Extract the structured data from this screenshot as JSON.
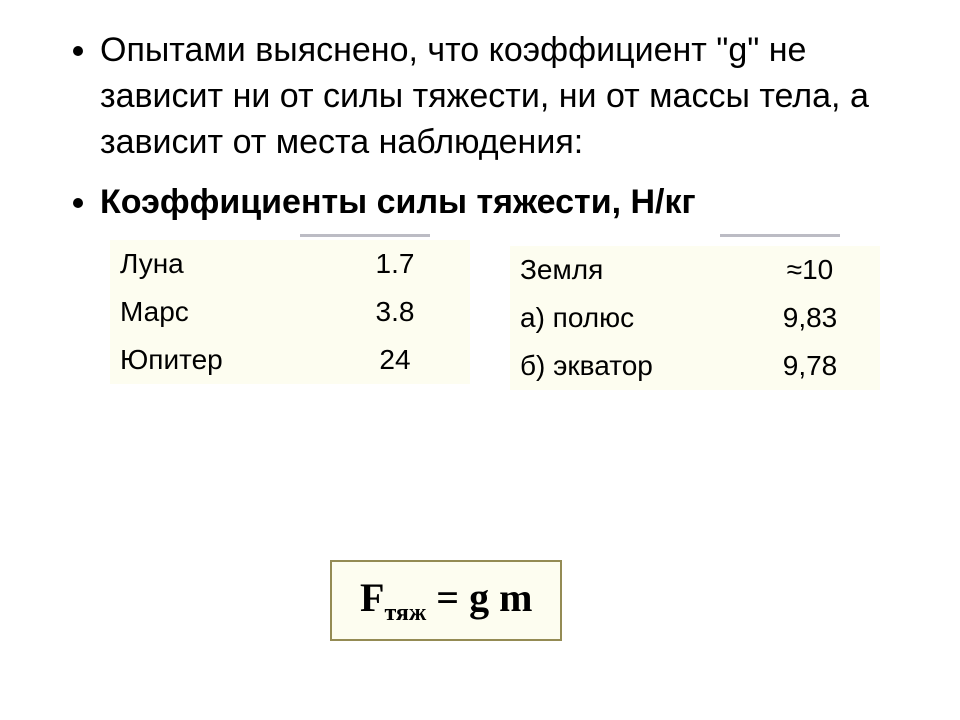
{
  "bullets": {
    "item1": "Опытами выяснено, что коэффициент \"g\" не зависит ни от силы тяжести, ни от массы тела, а зависит от места наблюдения:",
    "item2": "Коэффициенты силы тяжести, Н/кг"
  },
  "tableLeft": {
    "background_color": "#fdfdf0",
    "font_size_pt": 21,
    "rows": [
      {
        "label": "Луна",
        "value": "1.7"
      },
      {
        "label": "Марс",
        "value": "3.8"
      },
      {
        "label": "Юпитер",
        "value": "24"
      }
    ]
  },
  "tableRight": {
    "background_color": "#fdfdf0",
    "font_size_pt": 21,
    "rows": [
      {
        "label": "Земля",
        "value": "≈10"
      },
      {
        "label": "а) полюс",
        "value": "9,83"
      },
      {
        "label": "б) экватор",
        "value": "9,78"
      }
    ]
  },
  "formula": {
    "lhs_main": "F",
    "lhs_sub": "тяж",
    "eq": " = ",
    "rhs": "g m",
    "border_color": "#948b54",
    "background_color": "#fdfdf0",
    "font_family": "Times New Roman",
    "font_size_pt": 30
  },
  "styling": {
    "page_background": "#ffffff",
    "text_color": "#000000",
    "bullet_font_size_pt": 26,
    "rule_color": "#bcbcc4"
  }
}
